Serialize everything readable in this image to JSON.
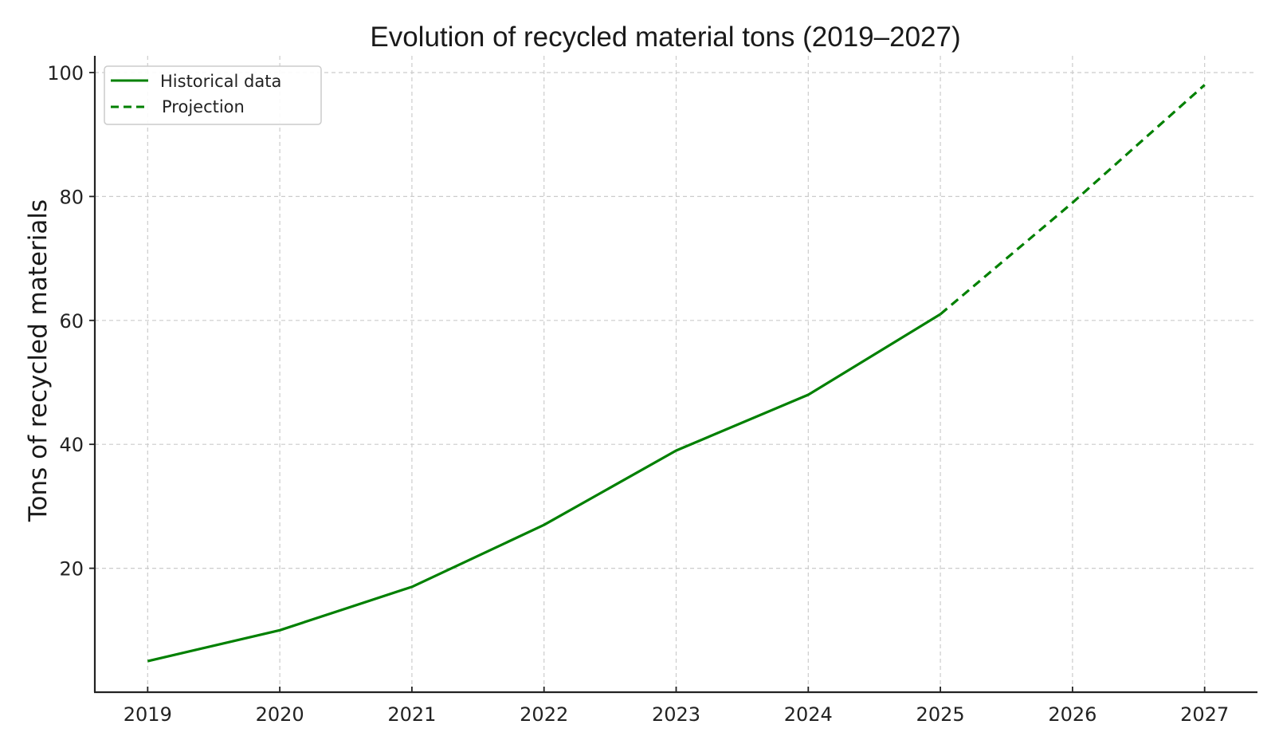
{
  "chart_data": {
    "type": "line",
    "title": "Evolution of recycled material tons (2019–2027)",
    "xlabel": "",
    "ylabel": "Tons of recycled materials",
    "x": [
      2019,
      2020,
      2021,
      2022,
      2023,
      2024,
      2025,
      2026,
      2027
    ],
    "x_tick_labels": [
      "2019",
      "2020",
      "2021",
      "2022",
      "2023",
      "2024",
      "2025",
      "2026",
      "2027"
    ],
    "y_ticks": [
      20,
      40,
      60,
      80,
      100
    ],
    "y_tick_labels": [
      "20",
      "40",
      "60",
      "80",
      "100"
    ],
    "xlim": [
      2018.6,
      2027.4
    ],
    "ylim": [
      0,
      102.7
    ],
    "grid": true,
    "legend_position": "top-left",
    "series": [
      {
        "name": "Historical data",
        "style": "solid",
        "color": "#008000",
        "x": [
          2019,
          2020,
          2021,
          2022,
          2023,
          2024,
          2025
        ],
        "values": [
          5,
          10,
          17,
          27,
          39,
          48,
          61
        ]
      },
      {
        "name": "Projection",
        "style": "dashed",
        "color": "#008000",
        "x": [
          2025,
          2026,
          2027
        ],
        "values": [
          61,
          79,
          98
        ]
      }
    ]
  }
}
